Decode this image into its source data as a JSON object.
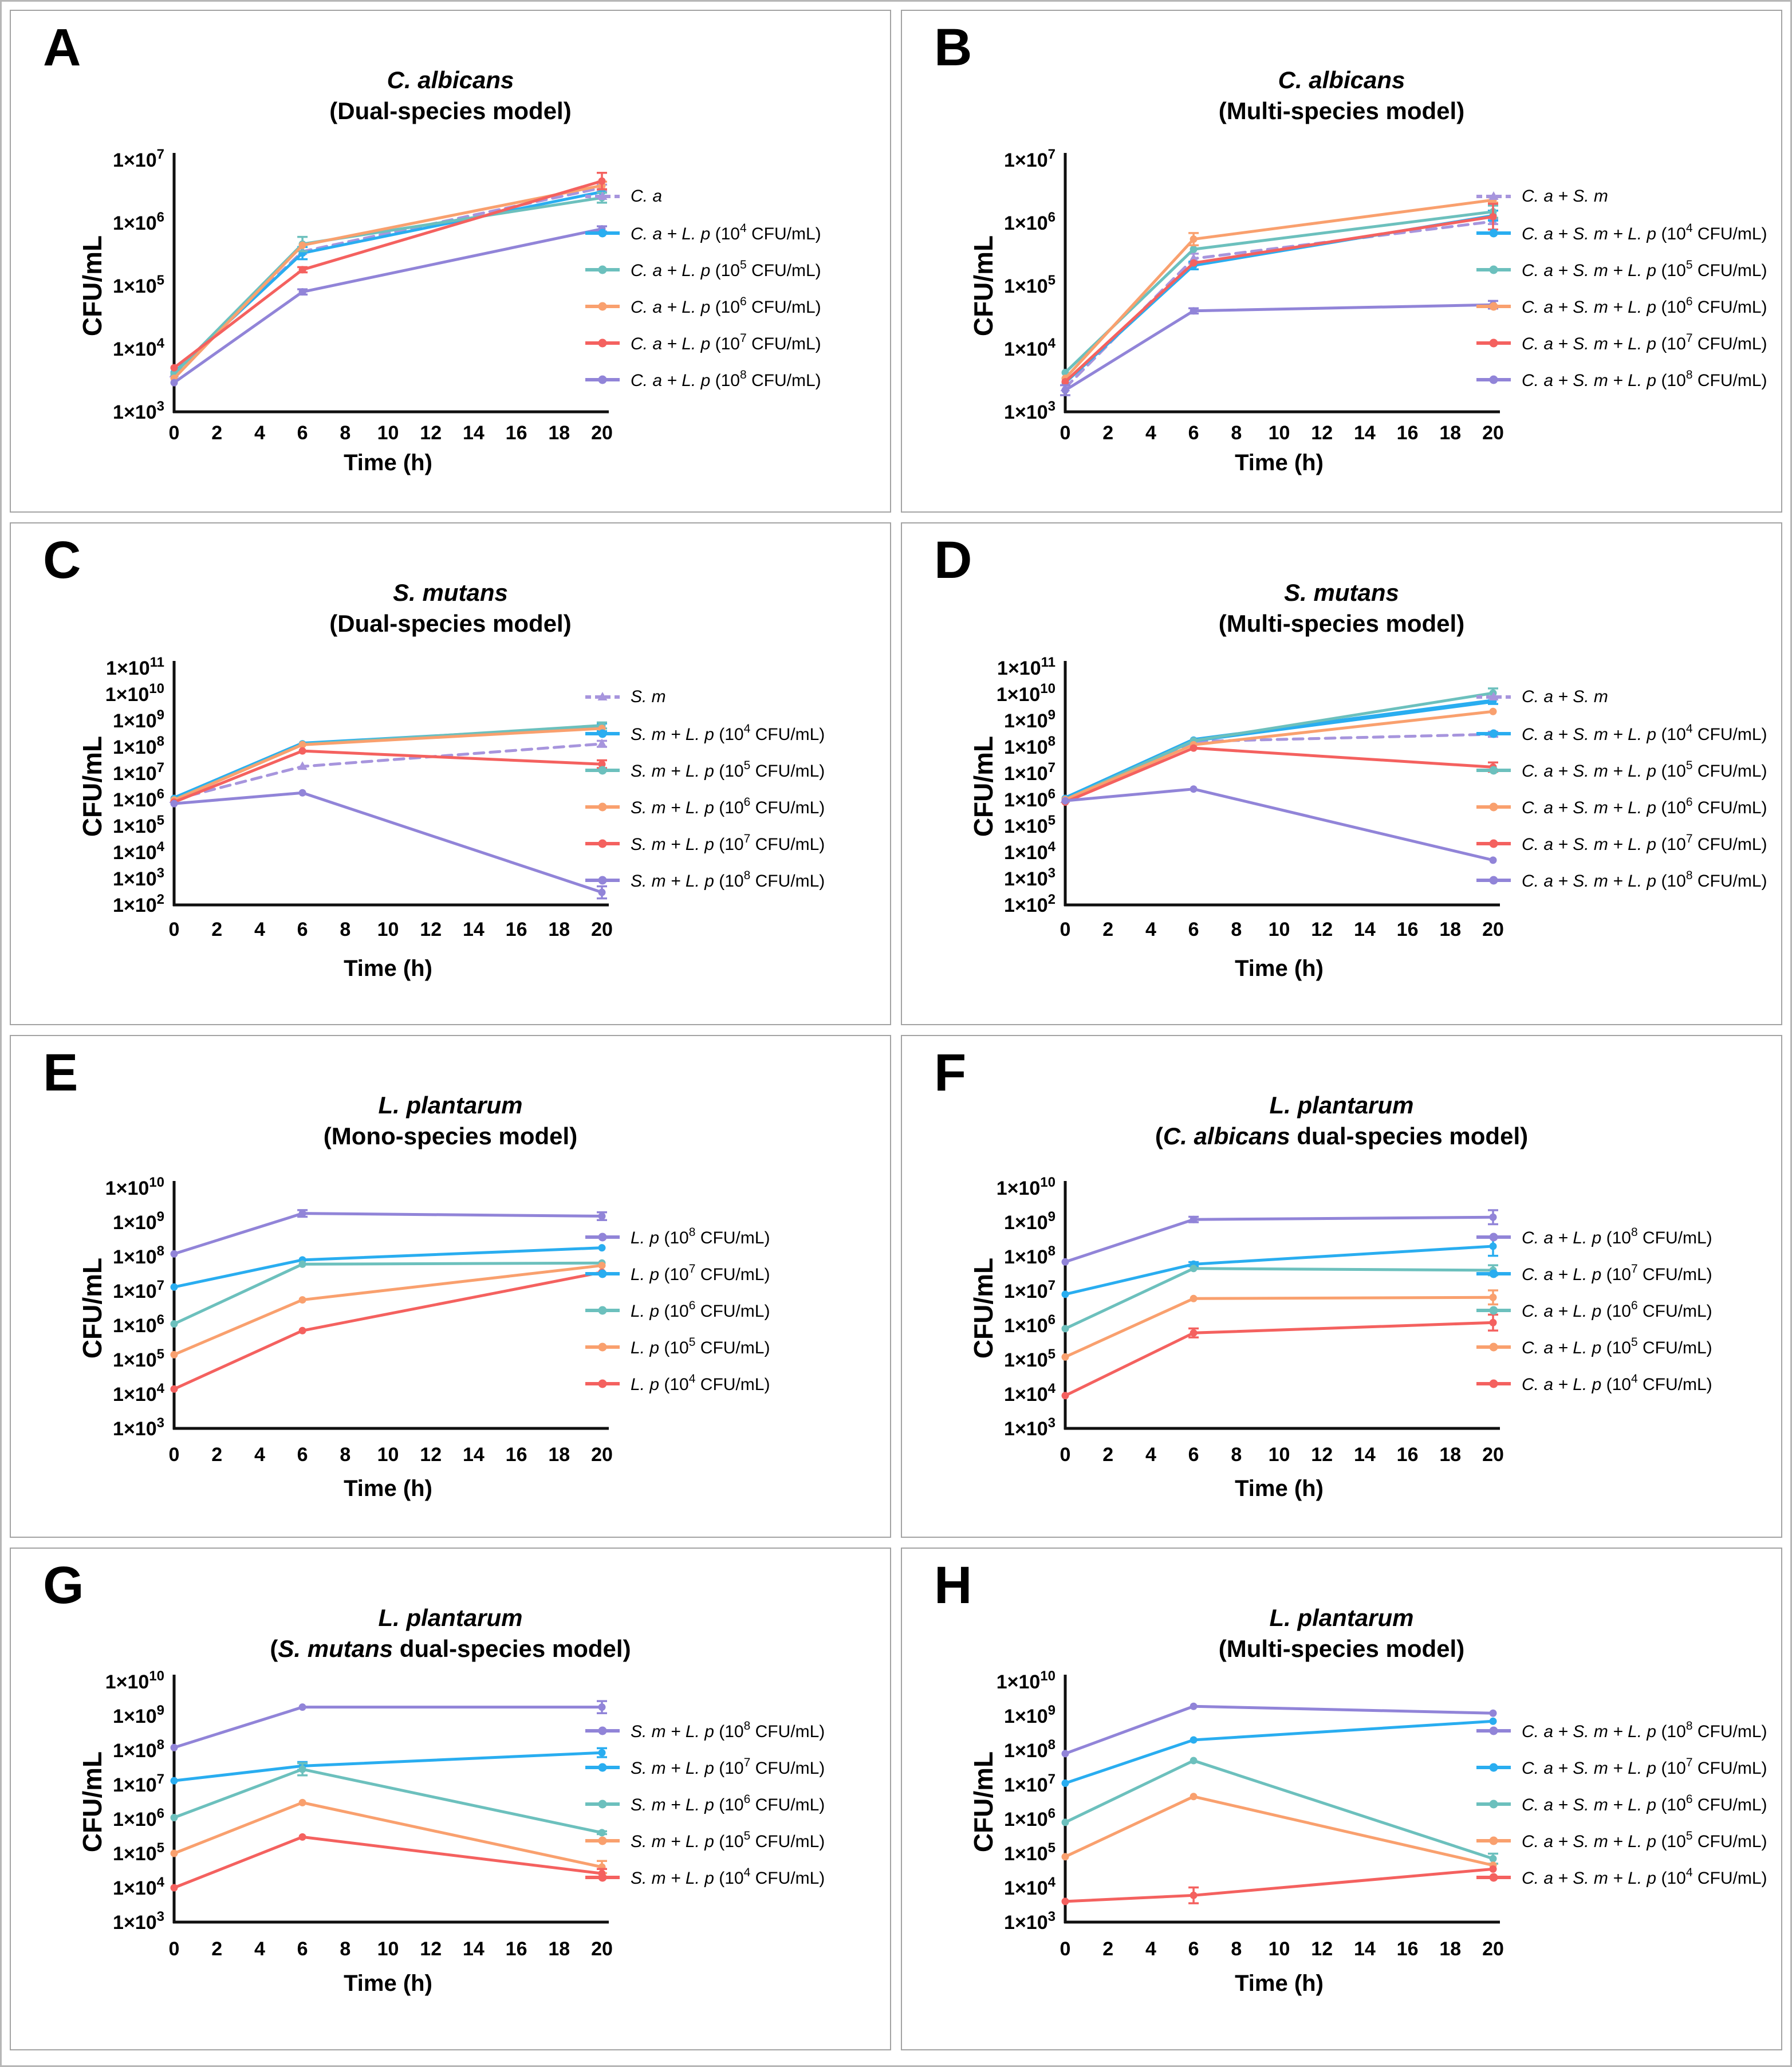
{
  "chart_data": {
    "type": "line",
    "xlabel": "Time (h)",
    "ylabel": "CFU/mL",
    "ytick_prefix": "1×10",
    "conc_open": " (10",
    "conc_close": " CFU/mL)",
    "x_ticks": [
      0,
      2,
      4,
      6,
      8,
      10,
      12,
      14,
      16,
      18,
      20
    ],
    "x_values": [
      0,
      6,
      20
    ],
    "legend_position": "right",
    "grid": "off",
    "panels": [
      {
        "letter": "A",
        "title_species": "C. albicans",
        "model_pre": "(Dual-species model)",
        "model_it": "",
        "model_post": "",
        "yexp_min": 3,
        "yexp_max": 7,
        "series": [
          {
            "label_italic": "C. a",
            "conc_exp": null,
            "dashed": true,
            "color": "#a795dd",
            "values": [
              4000.0,
              350000.0,
              3600000.0
            ],
            "err": [
              1,
              1,
              1.12
            ]
          },
          {
            "label_italic": "C. a + L. p",
            "conc_exp": "4",
            "dashed": false,
            "color": "#29adf0",
            "values": [
              4200.0,
              330000.0,
              3100000.0
            ],
            "err": [
              1,
              1.25,
              1
            ]
          },
          {
            "label_italic": "C. a + L. p",
            "conc_exp": "5",
            "dashed": false,
            "color": "#6cc0bd",
            "values": [
              4000.0,
              460000.0,
              2500000.0
            ],
            "err": [
              1,
              1.3,
              1.2
            ]
          },
          {
            "label_italic": "C. a + L. p",
            "conc_exp": "6",
            "dashed": false,
            "color": "#f9a06e",
            "values": [
              3400.0,
              440000.0,
              3900000.0
            ],
            "err": [
              1,
              1,
              1.15
            ]
          },
          {
            "label_italic": "C. a + L. p",
            "conc_exp": "7",
            "dashed": false,
            "color": "#f4615f",
            "values": [
              5000.0,
              180000.0,
              4600000.0
            ],
            "err": [
              1,
              1.1,
              1.35
            ]
          },
          {
            "label_italic": "C. a + L. p",
            "conc_exp": "8",
            "dashed": false,
            "color": "#9184d8",
            "values": [
              2900.0,
              80000.0,
              800000.0
            ],
            "err": [
              1,
              1.1,
              1.1
            ]
          }
        ]
      },
      {
        "letter": "B",
        "title_species": "C. albicans",
        "model_pre": "(Multi-species model)",
        "model_it": "",
        "model_post": "",
        "yexp_min": 3,
        "yexp_max": 7,
        "series": [
          {
            "label_italic": "C. a + S. m",
            "conc_exp": null,
            "dashed": true,
            "color": "#a795dd",
            "values": [
              2400.0,
              270000.0,
              1050000.0
            ],
            "err": [
              1,
              1.2,
              1.1
            ]
          },
          {
            "label_italic": "C. a + S. m + L. p",
            "conc_exp": "4",
            "dashed": false,
            "color": "#29adf0",
            "values": [
              2900.0,
              210000.0,
              1300000.0
            ],
            "err": [
              1,
              1.15,
              1.2
            ]
          },
          {
            "label_italic": "C. a + S. m + L. p",
            "conc_exp": "5",
            "dashed": false,
            "color": "#6cc0bd",
            "values": [
              4200.0,
              380000.0,
              1500000.0
            ],
            "err": [
              1,
              1,
              1.25
            ]
          },
          {
            "label_italic": "C. a + S. m + L. p",
            "conc_exp": "6",
            "dashed": false,
            "color": "#f9a06e",
            "values": [
              3400.0,
              550000.0,
              2300000.0
            ],
            "err": [
              1,
              1.25,
              1.1
            ]
          },
          {
            "label_italic": "C. a + S. m + L. p",
            "conc_exp": "7",
            "dashed": false,
            "color": "#f4615f",
            "values": [
              3000.0,
              230000.0,
              1250000.0
            ],
            "err": [
              1,
              1,
              1.6
            ]
          },
          {
            "label_italic": "C. a + S. m + L. p",
            "conc_exp": "8",
            "dashed": false,
            "color": "#9184d8",
            "values": [
              2200.0,
              40000.0,
              50000.0
            ],
            "err": [
              1.2,
              1.1,
              1.15
            ]
          }
        ]
      },
      {
        "letter": "C",
        "title_species": "S. mutans",
        "model_pre": "(Dual-species model)",
        "model_it": "",
        "model_post": "",
        "yexp_min": 2,
        "yexp_max": 11,
        "series": [
          {
            "label_italic": "S. m",
            "conc_exp": null,
            "dashed": true,
            "color": "#a795dd",
            "values": [
              1000000.0,
              18000000.0,
              130000000.0
            ],
            "err": [
              1,
              1,
              1.3
            ]
          },
          {
            "label_italic": "S. m + L. p",
            "conc_exp": "4",
            "dashed": false,
            "color": "#29adf0",
            "lw": 7.5,
            "values": [
              1100000.0,
              130000000.0,
              550000000.0
            ],
            "err": [
              1,
              1,
              1.4
            ]
          },
          {
            "label_italic": "S. m + L. p",
            "conc_exp": "5",
            "dashed": false,
            "color": "#6cc0bd",
            "values": [
              1000000.0,
              125000000.0,
              650000000.0
            ],
            "err": [
              1,
              1,
              1.3
            ]
          },
          {
            "label_italic": "S. m + L. p",
            "conc_exp": "6",
            "dashed": false,
            "color": "#f9a06e",
            "values": [
              950000.0,
              120000000.0,
              500000000.0
            ],
            "err": [
              1,
              1,
              1
            ]
          },
          {
            "label_italic": "S. m + L. p",
            "conc_exp": "7",
            "dashed": false,
            "color": "#f4615f",
            "values": [
              800000.0,
              70000000.0,
              22000000.0
            ],
            "err": [
              1,
              1,
              1.4
            ]
          },
          {
            "label_italic": "S. m + L. p",
            "conc_exp": "8",
            "dashed": false,
            "color": "#9184d8",
            "values": [
              700000.0,
              1800000.0,
              300.0
            ],
            "err": [
              1,
              1,
              1.7
            ]
          }
        ]
      },
      {
        "letter": "D",
        "title_species": "S. mutans",
        "model_pre": "(Multi-species model)",
        "model_it": "",
        "model_post": "",
        "yexp_min": 2,
        "yexp_max": 11,
        "series": [
          {
            "label_italic": "C. a + S. m",
            "conc_exp": null,
            "dashed": true,
            "color": "#a795dd",
            "values": [
              1000000.0,
              160000000.0,
              300000000.0
            ],
            "err": [
              1,
              1,
              1.25
            ]
          },
          {
            "label_italic": "C. a + S. m + L. p",
            "conc_exp": "4",
            "dashed": false,
            "color": "#29adf0",
            "lw": 7.5,
            "values": [
              1100000.0,
              180000000.0,
              5500000000.0
            ],
            "err": [
              1,
              1,
              1.3
            ]
          },
          {
            "label_italic": "C. a + S. m + L. p",
            "conc_exp": "5",
            "dashed": false,
            "color": "#6cc0bd",
            "values": [
              1000000.0,
              170000000.0,
              11000000000.0
            ],
            "err": [
              1,
              1,
              1.5
            ]
          },
          {
            "label_italic": "C. a + S. m + L. p",
            "conc_exp": "6",
            "dashed": false,
            "color": "#f9a06e",
            "values": [
              1000000.0,
              120000000.0,
              2200000000.0
            ],
            "err": [
              1,
              1,
              1
            ]
          },
          {
            "label_italic": "C. a + S. m + L. p",
            "conc_exp": "7",
            "dashed": false,
            "color": "#f4615f",
            "values": [
              800000.0,
              90000000.0,
              17000000.0
            ],
            "err": [
              1,
              1,
              1.5
            ]
          },
          {
            "label_italic": "C. a + S. m + L. p",
            "conc_exp": "8",
            "dashed": false,
            "color": "#9184d8",
            "values": [
              900000.0,
              2500000.0,
              5000.0
            ],
            "err": [
              1,
              1,
              1
            ]
          }
        ]
      },
      {
        "letter": "E",
        "title_species": "L. plantarum",
        "model_pre": "(Mono-species model)",
        "model_it": "",
        "model_post": "",
        "yexp_min": 3,
        "yexp_max": 10,
        "series": [
          {
            "label_italic": "L. p",
            "conc_exp": "8",
            "dashed": false,
            "color": "#9184d8",
            "values": [
              120000000.0,
              1800000000.0,
              1500000000.0
            ],
            "err": [
              1,
              1.25,
              1.3
            ]
          },
          {
            "label_italic": "L. p",
            "conc_exp": "7",
            "dashed": false,
            "color": "#29adf0",
            "values": [
              13000000.0,
              80000000.0,
              180000000.0
            ],
            "err": [
              1,
              1,
              1
            ]
          },
          {
            "label_italic": "L. p",
            "conc_exp": "6",
            "dashed": false,
            "color": "#6cc0bd",
            "values": [
              1100000.0,
              60000000.0,
              65000000.0
            ],
            "err": [
              1,
              1,
              1
            ]
          },
          {
            "label_italic": "L. p",
            "conc_exp": "5",
            "dashed": false,
            "color": "#f9a06e",
            "values": [
              140000.0,
              5500000.0,
              55000000.0
            ],
            "err": [
              1,
              1,
              1
            ]
          },
          {
            "label_italic": "L. p",
            "conc_exp": "4",
            "dashed": false,
            "color": "#f4615f",
            "values": [
              14000.0,
              700000.0,
              35000000.0
            ],
            "err": [
              1,
              1,
              1
            ]
          }
        ]
      },
      {
        "letter": "F",
        "title_species": "L. plantarum",
        "model_pre": "(",
        "model_it": "C. albicans",
        "model_post": " dual-species model)",
        "yexp_min": 3,
        "yexp_max": 10,
        "series": [
          {
            "label_italic": "C. a + L. p",
            "conc_exp": "8",
            "dashed": false,
            "color": "#9184d8",
            "values": [
              70000000.0,
              1200000000.0,
              1400000000.0
            ],
            "err": [
              1,
              1.2,
              1.6
            ]
          },
          {
            "label_italic": "C. a + L. p",
            "conc_exp": "7",
            "dashed": false,
            "color": "#29adf0",
            "values": [
              8000000.0,
              60000000.0,
              200000000.0
            ],
            "err": [
              1,
              1.15,
              1.9
            ]
          },
          {
            "label_italic": "C. a + L. p",
            "conc_exp": "6",
            "dashed": false,
            "color": "#6cc0bd",
            "values": [
              800000.0,
              45000000.0,
              40000000.0
            ],
            "err": [
              1,
              1,
              1.4
            ]
          },
          {
            "label_italic": "C. a + L. p",
            "conc_exp": "5",
            "dashed": false,
            "color": "#f9a06e",
            "values": [
              120000.0,
              6000000.0,
              6500000.0
            ],
            "err": [
              1,
              1,
              1.6
            ]
          },
          {
            "label_italic": "C. a + L. p",
            "conc_exp": "4",
            "dashed": false,
            "color": "#f4615f",
            "values": [
              9000.0,
              600000.0,
              1200000.0
            ],
            "err": [
              1,
              1.35,
              1.7
            ]
          }
        ]
      },
      {
        "letter": "G",
        "title_species": "L. plantarum",
        "model_pre": "(",
        "model_it": "S. mutans",
        "model_post": " dual-species model)",
        "yexp_min": 3,
        "yexp_max": 10,
        "series": [
          {
            "label_italic": "S. m + L. p",
            "conc_exp": "8",
            "dashed": false,
            "color": "#9184d8",
            "values": [
              120000000.0,
              1800000000.0,
              1800000000.0
            ],
            "err": [
              1,
              1,
              1.5
            ]
          },
          {
            "label_italic": "S. m + L. p",
            "conc_exp": "7",
            "dashed": false,
            "color": "#29adf0",
            "values": [
              13000000.0,
              35000000.0,
              85000000.0
            ],
            "err": [
              1,
              1.3,
              1.35
            ]
          },
          {
            "label_italic": "S. m + L. p",
            "conc_exp": "6",
            "dashed": false,
            "color": "#6cc0bd",
            "values": [
              1100000.0,
              28000000.0,
              400000.0
            ],
            "err": [
              1,
              1.5,
              1.1
            ]
          },
          {
            "label_italic": "S. m + L. p",
            "conc_exp": "5",
            "dashed": false,
            "color": "#f9a06e",
            "values": [
              100000.0,
              3000000.0,
              40000.0
            ],
            "err": [
              1,
              1,
              1.5
            ]
          },
          {
            "label_italic": "S. m + L. p",
            "conc_exp": "4",
            "dashed": false,
            "color": "#f4615f",
            "values": [
              10000.0,
              300000.0,
              26000.0
            ],
            "err": [
              1,
              1,
              1.35
            ]
          }
        ]
      },
      {
        "letter": "H",
        "title_species": "L. plantarum",
        "model_pre": "(Multi-species model)",
        "model_it": "",
        "model_post": "",
        "yexp_min": 3,
        "yexp_max": 10,
        "series": [
          {
            "label_italic": "C. a + S. m + L. p",
            "conc_exp": "8",
            "dashed": false,
            "color": "#9184d8",
            "values": [
              80000000.0,
              1900000000.0,
              1200000000.0
            ],
            "err": [
              1,
              1,
              1
            ]
          },
          {
            "label_italic": "C. a + S. m + L. p",
            "conc_exp": "7",
            "dashed": false,
            "color": "#29adf0",
            "values": [
              11000000.0,
              200000000.0,
              700000000.0
            ],
            "err": [
              1,
              1,
              1
            ]
          },
          {
            "label_italic": "C. a + S. m + L. p",
            "conc_exp": "6",
            "dashed": false,
            "color": "#6cc0bd",
            "values": [
              800000.0,
              50000000.0,
              70000.0
            ],
            "err": [
              1,
              1,
              1.4
            ]
          },
          {
            "label_italic": "C. a + S. m + L. p",
            "conc_exp": "5",
            "dashed": false,
            "color": "#f9a06e",
            "values": [
              80000.0,
              4500000.0,
              45000.0
            ],
            "err": [
              1,
              1,
              1
            ]
          },
          {
            "label_italic": "C. a + S. m + L. p",
            "conc_exp": "4",
            "dashed": false,
            "color": "#f4615f",
            "values": [
              4000.0,
              6000.0,
              35000.0
            ],
            "err": [
              1,
              1.7,
              1
            ]
          }
        ]
      }
    ]
  }
}
